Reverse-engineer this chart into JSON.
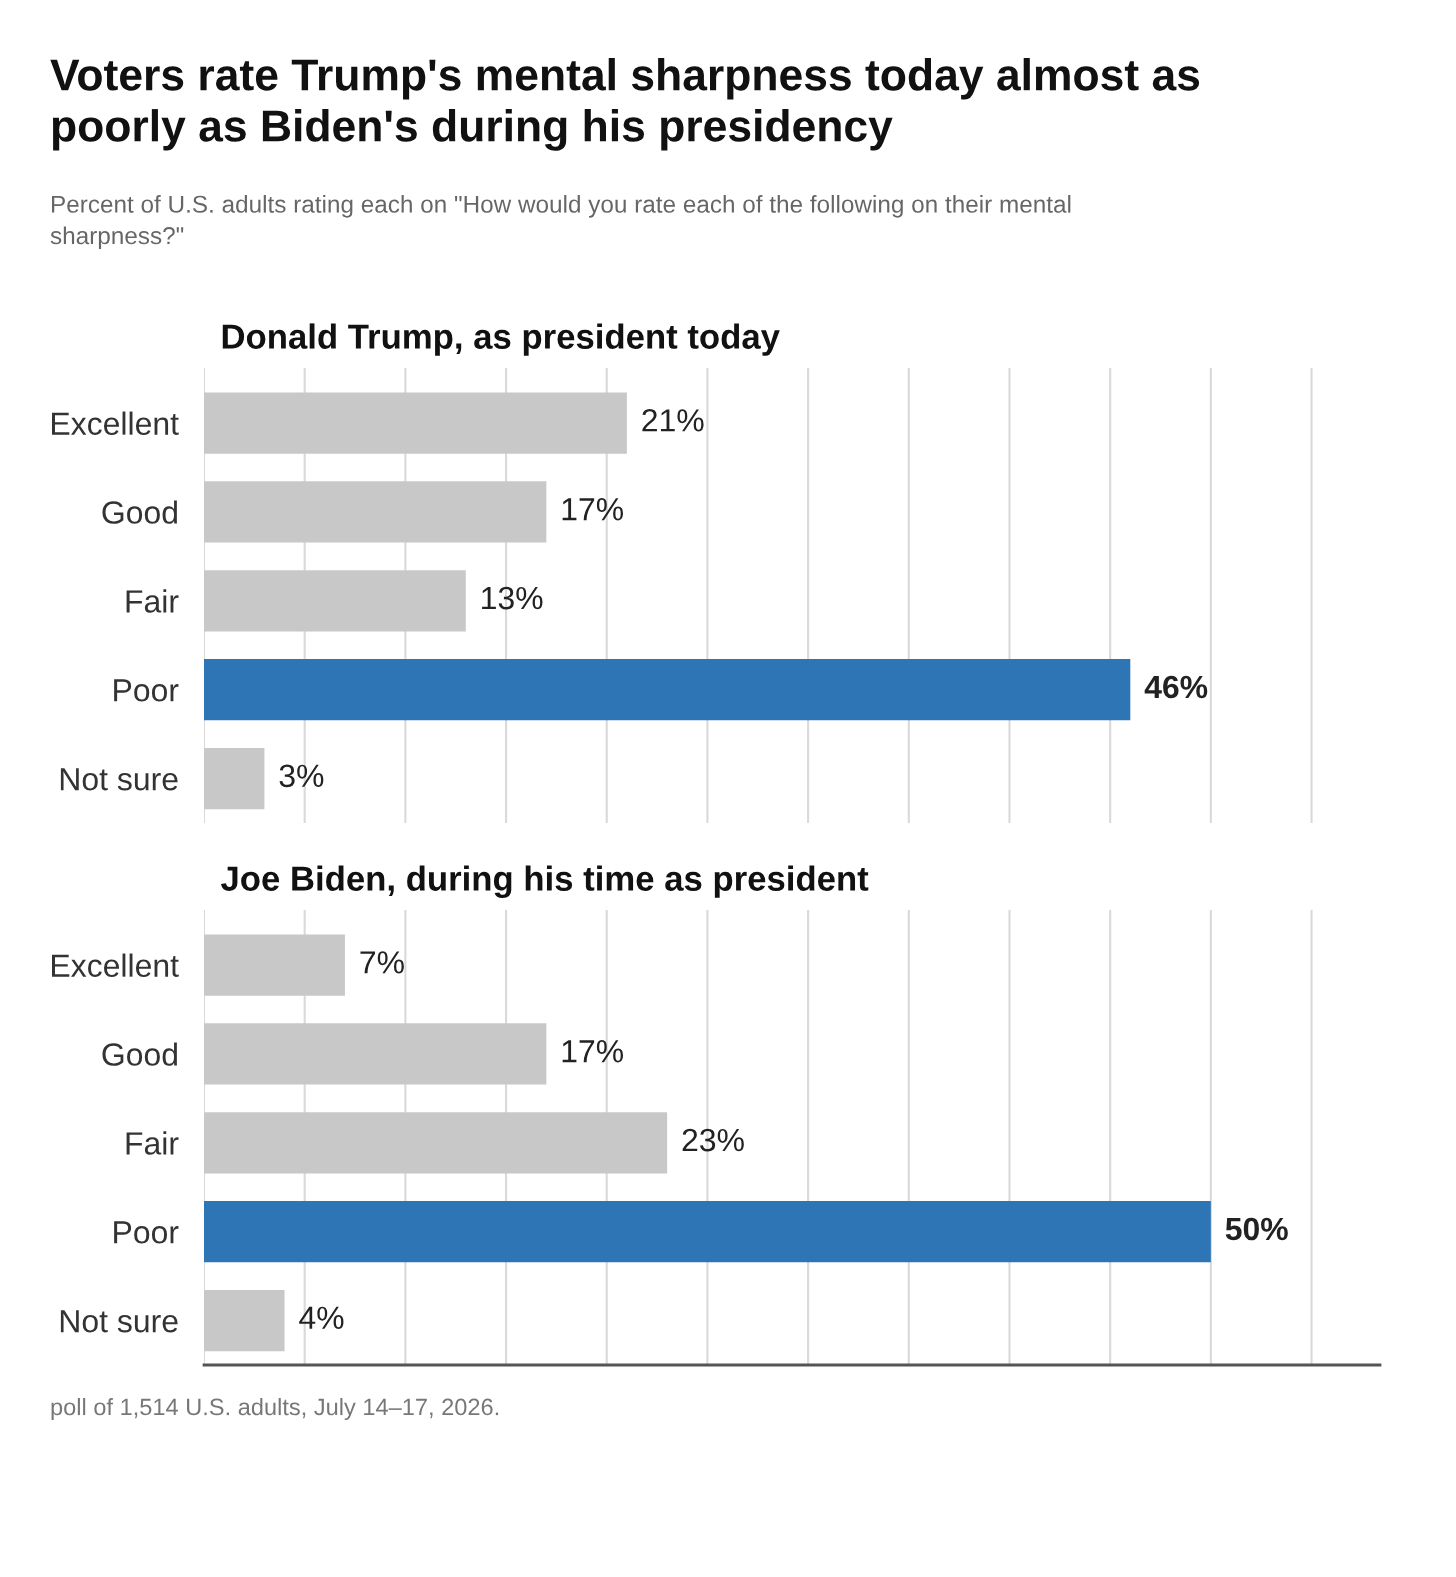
{
  "chart_data": [
    {
      "type": "bar",
      "orientation": "horizontal",
      "title": "Donald Trump, as president today",
      "categories": [
        "Excellent",
        "Good",
        "Fair",
        "Poor",
        "Not sure"
      ],
      "values": [
        21,
        17,
        13,
        46,
        3
      ],
      "colors": [
        "#c8c8c8",
        "#c8c8c8",
        "#c8c8c8",
        "#2e75b6",
        "#c8c8c8"
      ],
      "value_labels": [
        "21%",
        "17%",
        "13%",
        "46%",
        "3%"
      ],
      "xticks": [
        {
          "value": 0,
          "label": null
        },
        {
          "value": 5,
          "label": null
        },
        {
          "value": 10,
          "label": null
        },
        {
          "value": 15,
          "label": null
        },
        {
          "value": 20,
          "label": null
        },
        {
          "value": 25,
          "label": null
        },
        {
          "value": 30,
          "label": null
        },
        {
          "value": 35,
          "label": null
        },
        {
          "value": 40,
          "label": null
        },
        {
          "value": 45,
          "label": null
        },
        {
          "value": 50,
          "label": null
        },
        {
          "value": 55,
          "label": null
        }
      ],
      "grid": "x",
      "tick_labels": "y"
    },
    {
      "type": "bar",
      "orientation": "horizontal",
      "title": "Joe Biden, during his time as president",
      "categories": [
        "Excellent",
        "Good",
        "Fair",
        "Poor",
        "Not sure"
      ],
      "values": [
        7,
        17,
        23,
        50,
        4
      ],
      "colors": [
        "#c8c8c8",
        "#c8c8c8",
        "#c8c8c8",
        "#2e75b6",
        "#c8c8c8"
      ],
      "value_labels": [
        "7%",
        "17%",
        "23%",
        "50%",
        "4%"
      ],
      "xlim": [
        0,
        58.4
      ],
      "xticks": [
        {
          "value": 0,
          "label": null
        },
        {
          "value": 5,
          "label": null
        },
        {
          "value": 10,
          "label": null
        },
        {
          "value": 15,
          "label": null
        },
        {
          "value": 20,
          "label": null
        },
        {
          "value": 25,
          "label": null
        },
        {
          "value": 30,
          "label": null
        },
        {
          "value": 35,
          "label": null
        },
        {
          "value": 40,
          "label": null
        },
        {
          "value": 45,
          "label": null
        },
        {
          "value": 50,
          "label": null
        },
        {
          "value": 55,
          "label": null
        }
      ],
      "grid": "x",
      "tick_labels": "y",
      "annotations": [
        "Voters rate Trump's mental sharpness today almost as poorly as Biden's during his presidency",
        "Percent of U.S. adults rating each on \"How would you rate each of the following on their mental sharpness?\"",
        "poll of 1,514 U.S. adults, July 14–17, 2026."
      ]
    }
  ]
}
